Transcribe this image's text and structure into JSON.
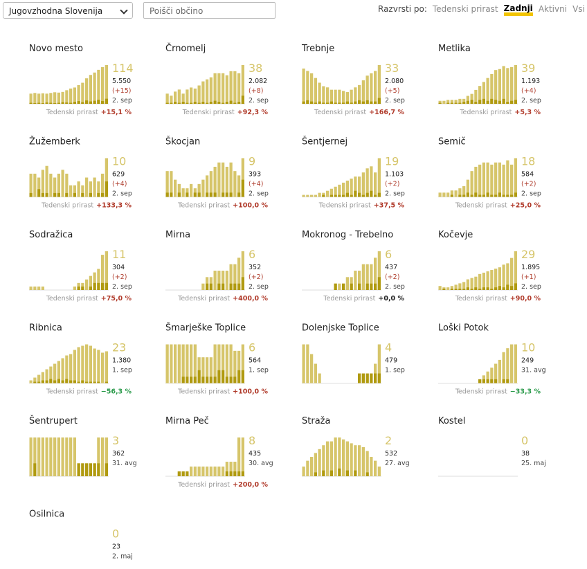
{
  "toolbar": {
    "region": "Jugovzhodna Slovenija",
    "search_placeholder": "Poišči občino",
    "sort_label": "Razvrsti po:",
    "sort_options": [
      "Tedenski prirast",
      "Zadnji",
      "Aktivni",
      "Vsi"
    ],
    "sort_active": 1
  },
  "growth_label": "Tedenski prirast",
  "municipalities": [
    {
      "name": "Novo mesto",
      "active": 114,
      "total": "5.550",
      "change": "(+15)",
      "date": "2. sep",
      "growth": "+15,1 %",
      "bars": [
        30,
        32,
        30,
        31,
        30,
        32,
        34,
        33,
        35,
        40,
        45,
        48,
        55,
        62,
        75,
        85,
        92,
        100,
        108,
        114
      ],
      "dark": [
        3,
        2,
        3,
        2,
        4,
        3,
        2,
        3,
        5,
        4,
        3,
        6,
        8,
        5,
        10,
        7,
        9,
        12,
        8,
        15
      ]
    },
    {
      "name": "Črnomelj",
      "active": 38,
      "total": "2.082",
      "change": "(+8)",
      "date": "2. sep",
      "growth": "+92,3 %",
      "bars": [
        10,
        8,
        12,
        14,
        10,
        14,
        16,
        15,
        18,
        22,
        24,
        26,
        30,
        30,
        30,
        28,
        32,
        32,
        30,
        38
      ],
      "dark": [
        1,
        1,
        2,
        1,
        2,
        1,
        1,
        2,
        1,
        2,
        1,
        2,
        3,
        2,
        1,
        2,
        3,
        1,
        2,
        8
      ]
    },
    {
      "name": "Trebnje",
      "active": 33,
      "total": "2.080",
      "change": "(+5)",
      "date": "2. sep",
      "growth": "+166,7 %",
      "bars": [
        30,
        28,
        26,
        22,
        18,
        15,
        14,
        12,
        12,
        12,
        11,
        10,
        12,
        14,
        16,
        20,
        24,
        26,
        28,
        33
      ],
      "dark": [
        2,
        3,
        2,
        1,
        2,
        1,
        1,
        2,
        1,
        1,
        1,
        2,
        1,
        2,
        3,
        2,
        3,
        2,
        2,
        5
      ]
    },
    {
      "name": "Metlika",
      "active": 39,
      "total": "1.193",
      "change": "(+4)",
      "date": "2. sep",
      "growth": "+5,3 %",
      "bars": [
        3,
        3,
        4,
        4,
        4,
        5,
        5,
        8,
        10,
        14,
        18,
        22,
        26,
        30,
        34,
        35,
        38,
        36,
        37,
        39
      ],
      "dark": [
        1,
        0,
        1,
        1,
        1,
        1,
        2,
        3,
        4,
        2,
        4,
        5,
        3,
        5,
        4,
        3,
        5,
        2,
        3,
        4
      ]
    },
    {
      "name": "Žužemberk",
      "active": 10,
      "total": "629",
      "change": "(+4)",
      "date": "2. sep",
      "growth": "+133,3 %",
      "bars": [
        6,
        6,
        5,
        7,
        8,
        6,
        5,
        6,
        7,
        6,
        3,
        3,
        4,
        3,
        5,
        4,
        5,
        4,
        6,
        10
      ],
      "dark": [
        1,
        0,
        2,
        1,
        1,
        0,
        1,
        1,
        0,
        1,
        0,
        1,
        0,
        1,
        0,
        1,
        0,
        1,
        1,
        4
      ]
    },
    {
      "name": "Škocjan",
      "active": 9,
      "total": "393",
      "change": "(+4)",
      "date": "2. sep",
      "growth": "+100,0 %",
      "bars": [
        6,
        6,
        4,
        3,
        2,
        2,
        3,
        2,
        3,
        4,
        5,
        6,
        7,
        8,
        8,
        7,
        8,
        6,
        5,
        9
      ],
      "dark": [
        1,
        1,
        0,
        1,
        0,
        1,
        0,
        1,
        1,
        0,
        1,
        1,
        1,
        0,
        1,
        1,
        1,
        0,
        1,
        4
      ]
    },
    {
      "name": "Šentjernej",
      "active": 19,
      "total": "1.103",
      "change": "(+2)",
      "date": "2. sep",
      "growth": "+37,5 %",
      "bars": [
        1,
        1,
        1,
        1,
        2,
        2,
        3,
        4,
        5,
        6,
        7,
        8,
        9,
        10,
        10,
        12,
        14,
        15,
        12,
        19
      ],
      "dark": [
        0,
        0,
        0,
        0,
        0,
        1,
        0,
        1,
        1,
        1,
        1,
        2,
        1,
        3,
        2,
        1,
        2,
        3,
        1,
        2
      ]
    },
    {
      "name": "Semič",
      "active": 18,
      "total": "584",
      "change": "(+2)",
      "date": "2. sep",
      "growth": "+25,0 %",
      "bars": [
        2,
        2,
        2,
        3,
        3,
        4,
        5,
        8,
        12,
        14,
        15,
        16,
        16,
        15,
        16,
        16,
        15,
        17,
        15,
        18
      ],
      "dark": [
        0,
        0,
        0,
        1,
        0,
        1,
        1,
        2,
        1,
        2,
        1,
        1,
        2,
        1,
        1,
        2,
        1,
        1,
        1,
        2
      ]
    },
    {
      "name": "Sodražica",
      "active": 11,
      "total": "304",
      "change": "(+2)",
      "date": "2. sep",
      "growth": "+75,0 %",
      "bars": [
        1,
        1,
        1,
        1,
        0,
        0,
        0,
        0,
        0,
        0,
        0,
        1,
        2,
        2,
        3,
        4,
        5,
        6,
        10,
        11
      ],
      "dark": [
        0,
        0,
        0,
        0,
        0,
        0,
        0,
        0,
        0,
        0,
        0,
        0,
        1,
        1,
        0,
        1,
        2,
        2,
        2,
        2
      ]
    },
    {
      "name": "Mirna",
      "active": 6,
      "total": "352",
      "change": "(+2)",
      "date": "2. sep",
      "growth": "+400,0 %",
      "bars": [
        0,
        0,
        0,
        0,
        0,
        0,
        0,
        0,
        0,
        1,
        2,
        2,
        3,
        3,
        3,
        3,
        4,
        4,
        5,
        6
      ],
      "dark": [
        0,
        0,
        0,
        0,
        0,
        0,
        0,
        0,
        0,
        0,
        1,
        1,
        0,
        1,
        1,
        0,
        1,
        1,
        1,
        2
      ]
    },
    {
      "name": "Mokronog - Trebelno",
      "active": 6,
      "total": "437",
      "change": "(+2)",
      "date": "2. sep",
      "growth": "+0,0 %",
      "bars": [
        0,
        0,
        0,
        0,
        0,
        0,
        0,
        0,
        1,
        1,
        1,
        2,
        2,
        3,
        3,
        4,
        4,
        4,
        5,
        6
      ],
      "dark": [
        0,
        0,
        0,
        0,
        0,
        0,
        0,
        0,
        1,
        0,
        1,
        0,
        1,
        0,
        1,
        0,
        1,
        1,
        1,
        2
      ]
    },
    {
      "name": "Kočevje",
      "active": 29,
      "total": "1.895",
      "change": "(+1)",
      "date": "2. sep",
      "growth": "+90,0 %",
      "bars": [
        3,
        2,
        2,
        3,
        4,
        5,
        6,
        8,
        9,
        10,
        12,
        13,
        14,
        15,
        16,
        17,
        19,
        20,
        24,
        29
      ],
      "dark": [
        0,
        1,
        0,
        1,
        1,
        1,
        1,
        2,
        1,
        2,
        1,
        2,
        2,
        1,
        2,
        3,
        2,
        4,
        3,
        5
      ]
    },
    {
      "name": "Ribnica",
      "active": 23,
      "total": "1.380",
      "date": "1. sep",
      "growth": "−56,3 %",
      "bars": [
        2,
        4,
        6,
        8,
        10,
        12,
        14,
        16,
        18,
        20,
        21,
        24,
        26,
        27,
        28,
        27,
        25,
        24,
        22,
        23
      ],
      "dark": [
        0,
        1,
        1,
        2,
        2,
        3,
        2,
        3,
        2,
        3,
        2,
        2,
        1,
        2,
        1,
        1,
        1,
        1,
        0,
        1
      ]
    },
    {
      "name": "Šmarješke Toplice",
      "active": 6,
      "total": "564",
      "date": "1. sep",
      "growth": "+100,0 %",
      "bars": [
        6,
        6,
        6,
        6,
        6,
        6,
        6,
        6,
        4,
        4,
        4,
        4,
        6,
        6,
        6,
        6,
        6,
        5,
        5,
        6
      ],
      "dark": [
        0,
        0,
        0,
        0,
        1,
        1,
        1,
        1,
        2,
        1,
        1,
        1,
        1,
        2,
        2,
        1,
        1,
        1,
        2,
        2
      ]
    },
    {
      "name": "Dolenjske Toplice",
      "active": 4,
      "total": "479",
      "date": "1. sep",
      "bars": [
        4,
        4,
        3,
        2,
        1,
        0,
        0,
        0,
        0,
        0,
        0,
        0,
        0,
        0,
        1,
        1,
        1,
        1,
        2,
        4
      ],
      "dark": [
        0,
        0,
        0,
        0,
        0,
        0,
        0,
        0,
        0,
        0,
        0,
        0,
        0,
        0,
        1,
        1,
        1,
        1,
        1,
        1
      ]
    },
    {
      "name": "Loški Potok",
      "active": 10,
      "total": "249",
      "date": "31. avg",
      "growth": "−33,3 %",
      "bars": [
        0,
        0,
        0,
        0,
        0,
        0,
        0,
        0,
        0,
        0,
        1,
        2,
        3,
        4,
        5,
        6,
        8,
        9,
        10,
        10
      ],
      "dark": [
        0,
        0,
        0,
        0,
        0,
        0,
        0,
        0,
        0,
        0,
        1,
        1,
        1,
        1,
        1,
        0,
        1,
        1,
        0,
        0
      ]
    },
    {
      "name": "Šentrupert",
      "active": 3,
      "total": "362",
      "date": "31. avg",
      "bars": [
        3,
        3,
        3,
        3,
        3,
        3,
        3,
        3,
        3,
        3,
        3,
        3,
        1,
        1,
        1,
        1,
        1,
        3,
        3,
        3
      ],
      "dark": [
        0,
        1,
        0,
        0,
        0,
        0,
        0,
        0,
        0,
        0,
        0,
        0,
        1,
        1,
        1,
        1,
        1,
        1,
        0,
        1
      ]
    },
    {
      "name": "Mirna Peč",
      "active": 8,
      "total": "435",
      "date": "30. avg",
      "growth": "+200,0 %",
      "bars": [
        0,
        0,
        0,
        1,
        1,
        1,
        2,
        2,
        2,
        2,
        2,
        2,
        2,
        2,
        2,
        3,
        3,
        3,
        8,
        8
      ],
      "dark": [
        0,
        0,
        0,
        1,
        1,
        1,
        0,
        0,
        0,
        0,
        0,
        0,
        0,
        0,
        0,
        1,
        1,
        1,
        1,
        1
      ]
    },
    {
      "name": "Straža",
      "active": 2,
      "total": "532",
      "date": "27. avg",
      "bars": [
        0.5,
        0.8,
        1,
        1.2,
        1.4,
        1.6,
        1.8,
        1.8,
        2,
        2,
        1.9,
        1.8,
        1.7,
        1.6,
        1.6,
        1.5,
        1.3,
        1,
        0.8,
        0.5
      ],
      "dark": [
        0,
        0,
        0,
        0.2,
        0,
        0.3,
        0,
        0.3,
        0,
        0.4,
        0,
        0.3,
        0,
        0.3,
        0,
        0,
        0.2,
        0,
        0,
        0
      ]
    },
    {
      "name": "Kostel",
      "active": 0,
      "total": "38",
      "date": "25. maj",
      "bars": [
        0,
        0,
        0,
        0,
        0,
        0,
        0,
        0,
        0,
        0,
        0,
        0,
        0,
        0,
        0,
        0,
        0,
        0,
        0,
        0
      ],
      "dark": [
        0,
        0,
        0,
        0,
        0,
        0,
        0,
        0,
        0,
        0,
        0,
        0,
        0,
        0,
        0,
        0,
        0,
        0,
        0,
        0
      ]
    },
    {
      "name": "Osilnica",
      "active": 0,
      "total": "23",
      "date": "2. maj",
      "bars": [
        0,
        0,
        0,
        0,
        0,
        0,
        0,
        0,
        0,
        0,
        0,
        0,
        0,
        0,
        0,
        0,
        0,
        0,
        0,
        0
      ],
      "dark": [
        0,
        0,
        0,
        0,
        0,
        0,
        0,
        0,
        0,
        0,
        0,
        0,
        0,
        0,
        0,
        0,
        0,
        0,
        0,
        0
      ]
    }
  ]
}
